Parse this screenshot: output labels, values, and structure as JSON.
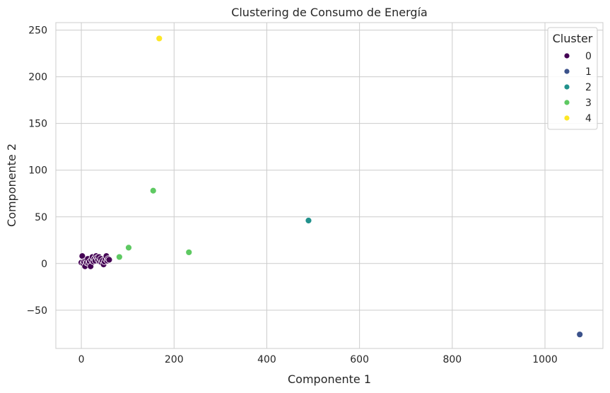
{
  "chart_data": {
    "type": "scatter",
    "title": "Clustering de Consumo de Energía",
    "xlabel": "Componente 1",
    "ylabel": "Componente 2",
    "xlim": [
      -55,
      1125
    ],
    "ylim": [
      -91,
      258
    ],
    "xticks": [
      0,
      200,
      400,
      600,
      800,
      1000
    ],
    "yticks": [
      -50,
      0,
      50,
      100,
      150,
      200,
      250
    ],
    "xtick_labels": [
      "0",
      "200",
      "400",
      "600",
      "800",
      "1000"
    ],
    "ytick_labels": [
      "−50",
      "0",
      "50",
      "100",
      "150",
      "200",
      "250"
    ],
    "grid": true,
    "legend": {
      "title": "Cluster",
      "position": "top-right",
      "entries": [
        "0",
        "1",
        "2",
        "3",
        "4"
      ]
    },
    "series": [
      {
        "name": "0",
        "color": "#440154",
        "points": [
          [
            0,
            1
          ],
          [
            2,
            8
          ],
          [
            4,
            0
          ],
          [
            6,
            2
          ],
          [
            8,
            -3
          ],
          [
            10,
            3
          ],
          [
            12,
            1
          ],
          [
            14,
            5
          ],
          [
            16,
            0
          ],
          [
            18,
            2
          ],
          [
            20,
            -3
          ],
          [
            22,
            4
          ],
          [
            24,
            7
          ],
          [
            26,
            2
          ],
          [
            28,
            5
          ],
          [
            30,
            3
          ],
          [
            32,
            8
          ],
          [
            34,
            6
          ],
          [
            36,
            4
          ],
          [
            38,
            7
          ],
          [
            40,
            2
          ],
          [
            42,
            5
          ],
          [
            44,
            1
          ],
          [
            46,
            3
          ],
          [
            48,
            -1
          ],
          [
            50,
            2
          ],
          [
            52,
            5
          ],
          [
            54,
            8
          ],
          [
            56,
            3
          ],
          [
            58,
            5
          ],
          [
            60,
            4
          ]
        ]
      },
      {
        "name": "1",
        "color": "#3b528b",
        "points": [
          [
            1075,
            -76
          ]
        ]
      },
      {
        "name": "2",
        "color": "#21918c",
        "points": [
          [
            490,
            46
          ]
        ]
      },
      {
        "name": "3",
        "color": "#5ec962",
        "points": [
          [
            82,
            7
          ],
          [
            102,
            17
          ],
          [
            155,
            78
          ],
          [
            232,
            12
          ]
        ]
      },
      {
        "name": "4",
        "color": "#fde725",
        "points": [
          [
            168,
            241
          ]
        ]
      }
    ]
  }
}
